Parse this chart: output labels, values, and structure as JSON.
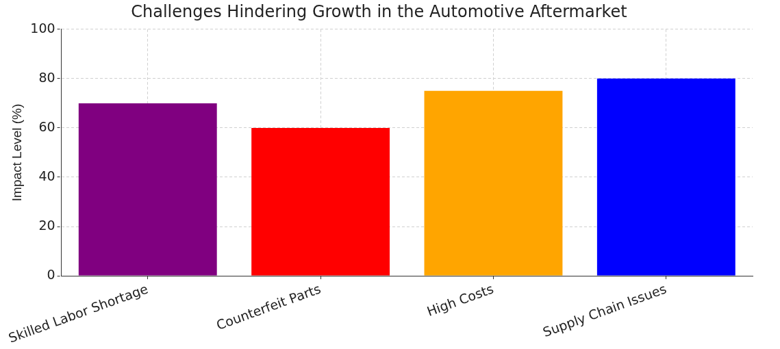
{
  "chart_data": {
    "type": "bar",
    "title": "Challenges Hindering Growth in the Automotive Aftermarket",
    "ylabel": "Impact Level (%)",
    "categories": [
      "Skilled Labor Shortage",
      "Counterfeit Parts",
      "High Costs",
      "Supply Chain Issues"
    ],
    "values": [
      70,
      60,
      75,
      80
    ],
    "colors": [
      "#800080",
      "#ff0000",
      "#ffa500",
      "#0000ff"
    ],
    "ylim": [
      0,
      100
    ],
    "yticks": [
      0,
      20,
      40,
      60,
      80,
      100
    ],
    "grid": true
  }
}
